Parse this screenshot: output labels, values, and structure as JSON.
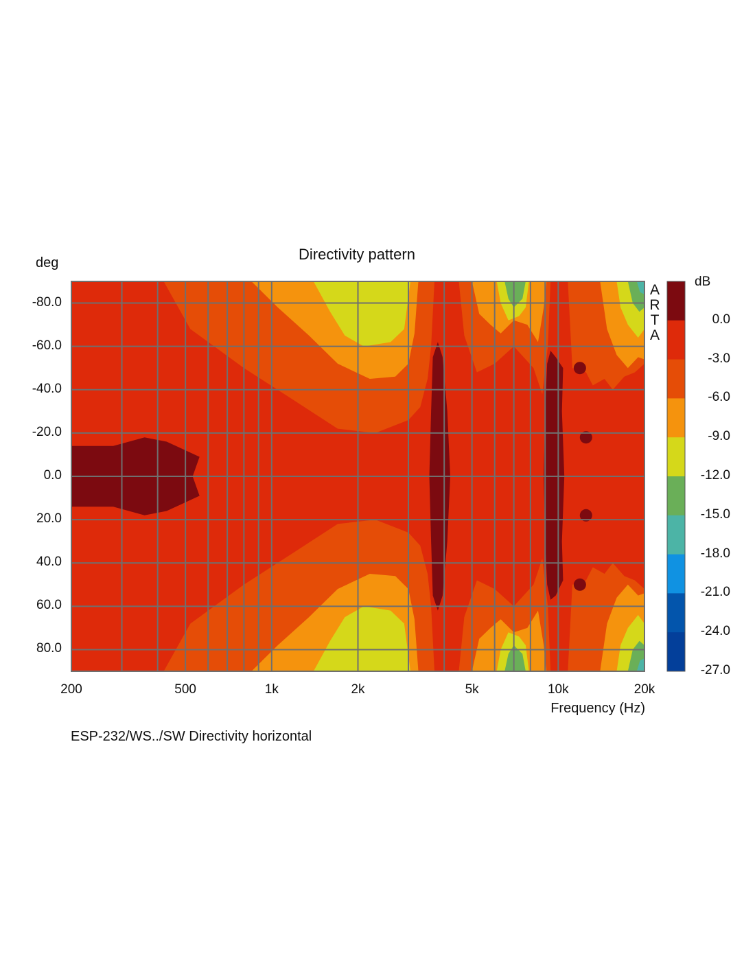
{
  "chart_data": {
    "type": "heatmap",
    "title": "Directivity pattern",
    "xlabel": "Frequency (Hz)",
    "ylabel": "deg",
    "x_scale": "log",
    "xlim": [
      200,
      20000
    ],
    "ylim": [
      -90,
      90
    ],
    "x_ticks": [
      {
        "value": 200,
        "label": "200"
      },
      {
        "value": 500,
        "label": "500"
      },
      {
        "value": 1000,
        "label": "1k"
      },
      {
        "value": 2000,
        "label": "2k"
      },
      {
        "value": 5000,
        "label": "5k"
      },
      {
        "value": 10000,
        "label": "10k"
      },
      {
        "value": 20000,
        "label": "20k"
      }
    ],
    "x_minor_gridlines": [
      300,
      400,
      600,
      700,
      800,
      900,
      3000,
      4000,
      6000,
      7000,
      8000,
      9000
    ],
    "y_ticks": [
      {
        "value": -80,
        "label": "-80.0"
      },
      {
        "value": -60,
        "label": "-60.0"
      },
      {
        "value": -40,
        "label": "-40.0"
      },
      {
        "value": -20,
        "label": "-20.0"
      },
      {
        "value": 0,
        "label": "0.0"
      },
      {
        "value": 20,
        "label": "20.0"
      },
      {
        "value": 40,
        "label": "40.0"
      },
      {
        "value": 60,
        "label": "60.0"
      },
      {
        "value": 80,
        "label": "80.0"
      }
    ],
    "grid": true,
    "colorbar": {
      "unit": "dB",
      "ticks": [
        "0.0",
        "-3.0",
        "-6.0",
        "-9.0",
        "-12.0",
        "-15.0",
        "-18.0",
        "-21.0",
        "-24.0",
        "-27.0"
      ],
      "levels": [
        {
          "min": 0,
          "color": "#7c0a10"
        },
        {
          "min": -3,
          "color": "#de2a0a"
        },
        {
          "min": -6,
          "color": "#e54d07"
        },
        {
          "min": -9,
          "color": "#f5930d"
        },
        {
          "min": -12,
          "color": "#d5d81a"
        },
        {
          "min": -15,
          "color": "#6aaf58"
        },
        {
          "min": -18,
          "color": "#4cb4a6"
        },
        {
          "min": -21,
          "color": "#1092e2"
        },
        {
          "min": -24,
          "color": "#0355ac"
        },
        {
          "min": -27,
          "color": "#033f9a"
        }
      ]
    },
    "regions_approx_db": [
      {
        "x_range": [
          200,
          580
        ],
        "y_range": [
          -15,
          15
        ],
        "level_db": 0
      },
      {
        "x_range": [
          3600,
          4200
        ],
        "y_range": [
          -60,
          60
        ],
        "level_db": 0
      },
      {
        "x_range": [
          9000,
          10700
        ],
        "y_range": [
          -58,
          55
        ],
        "level_db": 0
      },
      {
        "x_range": [
          1700,
          3000
        ],
        "y_range": [
          -90,
          -55
        ],
        "level_db": -10
      },
      {
        "x_range": [
          1700,
          3000
        ],
        "y_range": [
          55,
          90
        ],
        "level_db": -10
      },
      {
        "x_range": [
          6200,
          7800
        ],
        "y_range": [
          -90,
          -70
        ],
        "level_db": -14
      },
      {
        "x_range": [
          6200,
          7800
        ],
        "y_range": [
          70,
          90
        ],
        "level_db": -14
      },
      {
        "x_range": [
          16000,
          20000
        ],
        "y_range": [
          -90,
          -70
        ],
        "level_db": -16
      },
      {
        "x_range": [
          16000,
          20000
        ],
        "y_range": [
          70,
          90
        ],
        "level_db": -16
      }
    ]
  },
  "brand_vertical": "ARTA",
  "footer_note": "ESP-232/WS../SW   Directivity horizontal"
}
